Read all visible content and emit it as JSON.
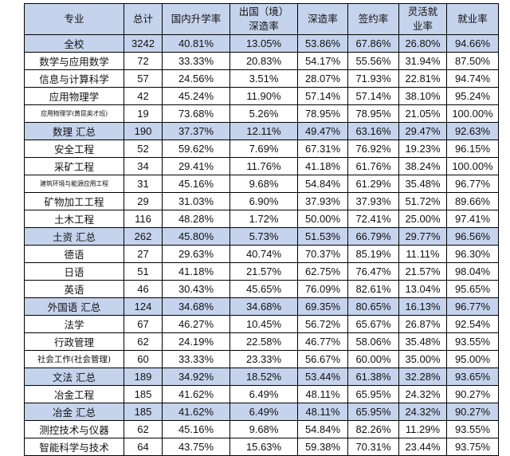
{
  "headers": [
    "专业",
    "总计",
    "国内升学率",
    "出国（境）深造率",
    "深造率",
    "签约率",
    "灵活就业率",
    "就业率"
  ],
  "rows": [
    {
      "major": "全校",
      "total": "3242",
      "domestic": "40.81%",
      "abroad": "13.05%",
      "further": "53.86%",
      "signed": "67.86%",
      "flexible": "26.80%",
      "employment": "94.66%",
      "hl": true
    },
    {
      "major": "数学与应用数学",
      "total": "72",
      "domestic": "33.33%",
      "abroad": "20.83%",
      "further": "54.17%",
      "signed": "55.56%",
      "flexible": "31.94%",
      "employment": "87.50%"
    },
    {
      "major": "信息与计算科学",
      "total": "57",
      "domestic": "24.56%",
      "abroad": "3.51%",
      "further": "28.07%",
      "signed": "71.93%",
      "flexible": "22.81%",
      "employment": "94.74%"
    },
    {
      "major": "应用物理学",
      "total": "42",
      "domestic": "45.24%",
      "abroad": "11.90%",
      "further": "57.14%",
      "signed": "57.14%",
      "flexible": "38.10%",
      "employment": "95.24%"
    },
    {
      "major": "应用物理学(黄昆英才班)",
      "total": "19",
      "domestic": "73.68%",
      "abroad": "5.26%",
      "further": "78.95%",
      "signed": "78.95%",
      "flexible": "21.05%",
      "employment": "100.00%",
      "size": "tiny"
    },
    {
      "major": "数理 汇总",
      "total": "190",
      "domestic": "37.37%",
      "abroad": "12.11%",
      "further": "49.47%",
      "signed": "63.16%",
      "flexible": "29.47%",
      "employment": "92.63%",
      "hl": true
    },
    {
      "major": "安全工程",
      "total": "52",
      "domestic": "59.62%",
      "abroad": "7.69%",
      "further": "67.31%",
      "signed": "76.92%",
      "flexible": "19.23%",
      "employment": "96.15%"
    },
    {
      "major": "采矿工程",
      "total": "34",
      "domestic": "29.41%",
      "abroad": "11.76%",
      "further": "41.18%",
      "signed": "61.76%",
      "flexible": "38.24%",
      "employment": "100.00%"
    },
    {
      "major": "建筑环境与能源应用工程",
      "total": "31",
      "domestic": "45.16%",
      "abroad": "9.68%",
      "further": "54.84%",
      "signed": "61.29%",
      "flexible": "35.48%",
      "employment": "96.77%",
      "size": "tiny"
    },
    {
      "major": "矿物加工工程",
      "total": "29",
      "domestic": "31.03%",
      "abroad": "6.90%",
      "further": "37.93%",
      "signed": "37.93%",
      "flexible": "51.72%",
      "employment": "89.66%"
    },
    {
      "major": "土木工程",
      "total": "116",
      "domestic": "48.28%",
      "abroad": "1.72%",
      "further": "50.00%",
      "signed": "72.41%",
      "flexible": "25.00%",
      "employment": "97.41%"
    },
    {
      "major": "土资 汇总",
      "total": "262",
      "domestic": "45.80%",
      "abroad": "5.73%",
      "further": "51.53%",
      "signed": "66.79%",
      "flexible": "29.77%",
      "employment": "96.56%",
      "hl": true
    },
    {
      "major": "德语",
      "total": "27",
      "domestic": "29.63%",
      "abroad": "40.74%",
      "further": "70.37%",
      "signed": "85.19%",
      "flexible": "11.11%",
      "employment": "96.30%"
    },
    {
      "major": "日语",
      "total": "51",
      "domestic": "41.18%",
      "abroad": "21.57%",
      "further": "62.75%",
      "signed": "76.47%",
      "flexible": "21.57%",
      "employment": "98.04%"
    },
    {
      "major": "英语",
      "total": "46",
      "domestic": "30.43%",
      "abroad": "45.65%",
      "further": "76.09%",
      "signed": "82.61%",
      "flexible": "13.04%",
      "employment": "95.65%"
    },
    {
      "major": "外国语 汇总",
      "total": "124",
      "domestic": "34.68%",
      "abroad": "34.68%",
      "further": "69.35%",
      "signed": "80.65%",
      "flexible": "16.13%",
      "employment": "96.77%",
      "hl": true
    },
    {
      "major": "法学",
      "total": "67",
      "domestic": "46.27%",
      "abroad": "10.45%",
      "further": "56.72%",
      "signed": "65.67%",
      "flexible": "26.87%",
      "employment": "92.54%"
    },
    {
      "major": "行政管理",
      "total": "62",
      "domestic": "24.19%",
      "abroad": "22.58%",
      "further": "46.77%",
      "signed": "58.06%",
      "flexible": "35.48%",
      "employment": "93.55%"
    },
    {
      "major": "社会工作(社会管理)",
      "total": "60",
      "domestic": "33.33%",
      "abroad": "23.33%",
      "further": "56.67%",
      "signed": "60.00%",
      "flexible": "35.00%",
      "employment": "95.00%",
      "size": "small"
    },
    {
      "major": "文法 汇总",
      "total": "189",
      "domestic": "34.92%",
      "abroad": "18.52%",
      "further": "53.44%",
      "signed": "61.38%",
      "flexible": "32.28%",
      "employment": "93.65%",
      "hl": true
    },
    {
      "major": "冶金工程",
      "total": "185",
      "domestic": "41.62%",
      "abroad": "6.49%",
      "further": "48.11%",
      "signed": "65.95%",
      "flexible": "24.32%",
      "employment": "90.27%"
    },
    {
      "major": "冶金 汇总",
      "total": "185",
      "domestic": "41.62%",
      "abroad": "6.49%",
      "further": "48.11%",
      "signed": "65.95%",
      "flexible": "24.32%",
      "employment": "90.27%",
      "hl": true
    },
    {
      "major": "测控技术与仪器",
      "total": "62",
      "domestic": "45.16%",
      "abroad": "9.68%",
      "further": "54.84%",
      "signed": "82.26%",
      "flexible": "11.29%",
      "employment": "93.55%"
    },
    {
      "major": "智能科学与技术",
      "total": "64",
      "domestic": "43.75%",
      "abroad": "15.63%",
      "further": "59.38%",
      "signed": "70.31%",
      "flexible": "23.44%",
      "employment": "93.75%"
    }
  ]
}
